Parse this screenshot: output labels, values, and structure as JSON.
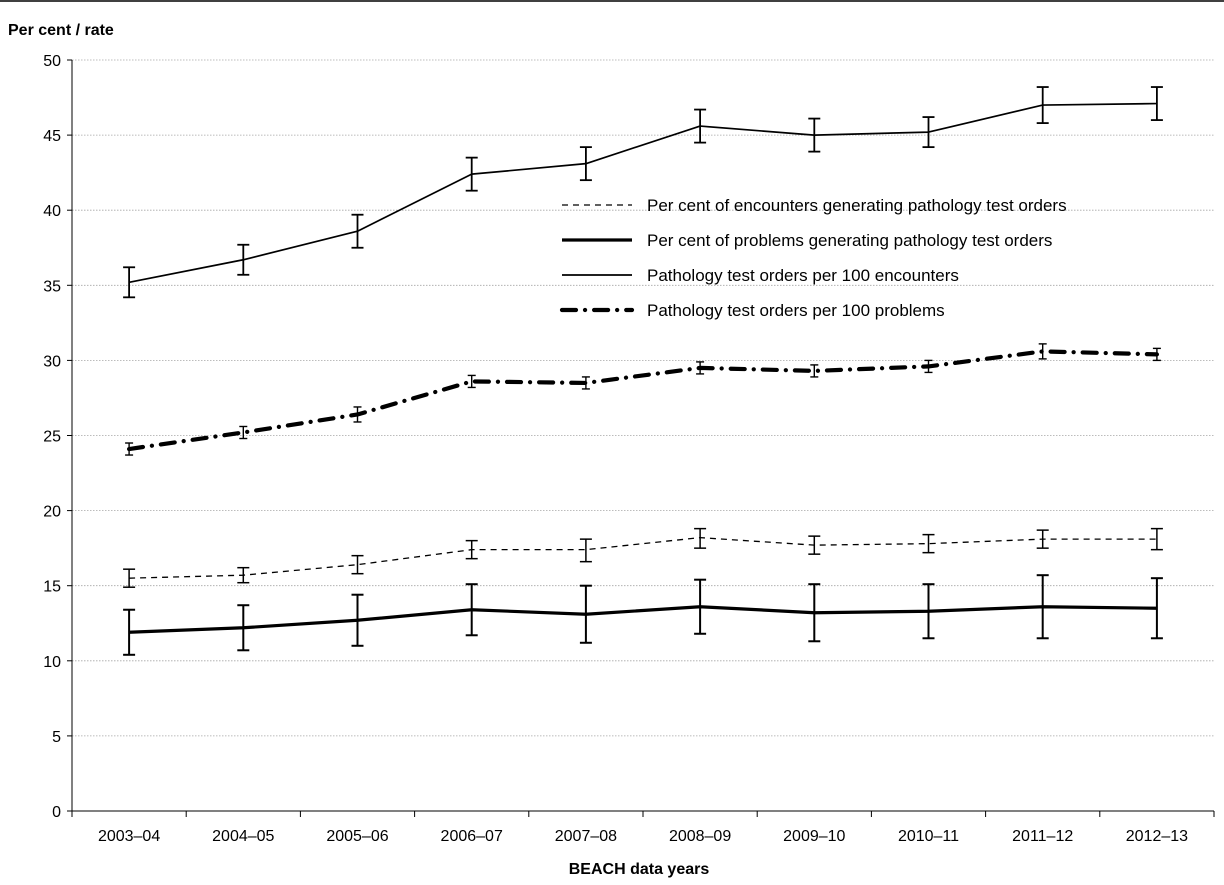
{
  "chart_data": {
    "type": "line",
    "ylabel": "Per cent / rate",
    "xlabel": "BEACH data years",
    "ylim": [
      0,
      50
    ],
    "yticks": [
      0,
      5,
      10,
      15,
      20,
      25,
      30,
      35,
      40,
      45,
      50
    ],
    "grid": "horizontal",
    "legend_position": "top-right",
    "categories": [
      "2003–04",
      "2004–05",
      "2005–06",
      "2006–07",
      "2007–08",
      "2008–09",
      "2009–10",
      "2010–11",
      "2011–12",
      "2012–13"
    ],
    "series": [
      {
        "name": "Per cent of encounters generating pathology test orders",
        "style": "dashed",
        "values": [
          15.5,
          15.7,
          16.4,
          17.4,
          17.4,
          18.2,
          17.7,
          17.8,
          18.1,
          18.1
        ],
        "ci_low": [
          14.9,
          15.2,
          15.8,
          16.8,
          16.6,
          17.5,
          17.1,
          17.2,
          17.5,
          17.4
        ],
        "ci_high": [
          16.1,
          16.2,
          17.0,
          18.0,
          18.1,
          18.8,
          18.3,
          18.4,
          18.7,
          18.8
        ]
      },
      {
        "name": "Per cent of problems generating pathology test orders",
        "style": "thick-solid",
        "values": [
          11.9,
          12.2,
          12.7,
          13.4,
          13.1,
          13.6,
          13.2,
          13.3,
          13.6,
          13.5
        ],
        "ci_low": [
          10.4,
          10.7,
          11.0,
          11.7,
          11.2,
          11.8,
          11.3,
          11.5,
          11.5,
          11.5
        ],
        "ci_high": [
          13.4,
          13.7,
          14.4,
          15.1,
          15.0,
          15.4,
          15.1,
          15.1,
          15.7,
          15.5
        ]
      },
      {
        "name": "Pathology test orders per 100 encounters",
        "style": "thin-solid",
        "values": [
          35.2,
          36.7,
          38.6,
          42.4,
          43.1,
          45.6,
          45.0,
          45.2,
          47.0,
          47.1
        ],
        "ci_low": [
          34.2,
          35.7,
          37.5,
          41.3,
          42.0,
          44.5,
          43.9,
          44.2,
          45.8,
          46.0
        ],
        "ci_high": [
          36.2,
          37.7,
          39.7,
          43.5,
          44.2,
          46.7,
          46.1,
          46.2,
          48.2,
          48.2
        ]
      },
      {
        "name": "Pathology test orders per 100 problems",
        "style": "thick-dash-dot",
        "values": [
          24.1,
          25.2,
          26.4,
          28.6,
          28.5,
          29.5,
          29.3,
          29.6,
          30.6,
          30.4
        ],
        "ci_low": [
          23.7,
          24.8,
          25.9,
          28.2,
          28.1,
          29.1,
          28.9,
          29.2,
          30.1,
          30.0
        ],
        "ci_high": [
          24.5,
          25.6,
          26.9,
          29.0,
          28.9,
          29.9,
          29.7,
          30.0,
          31.1,
          30.8
        ]
      }
    ]
  }
}
